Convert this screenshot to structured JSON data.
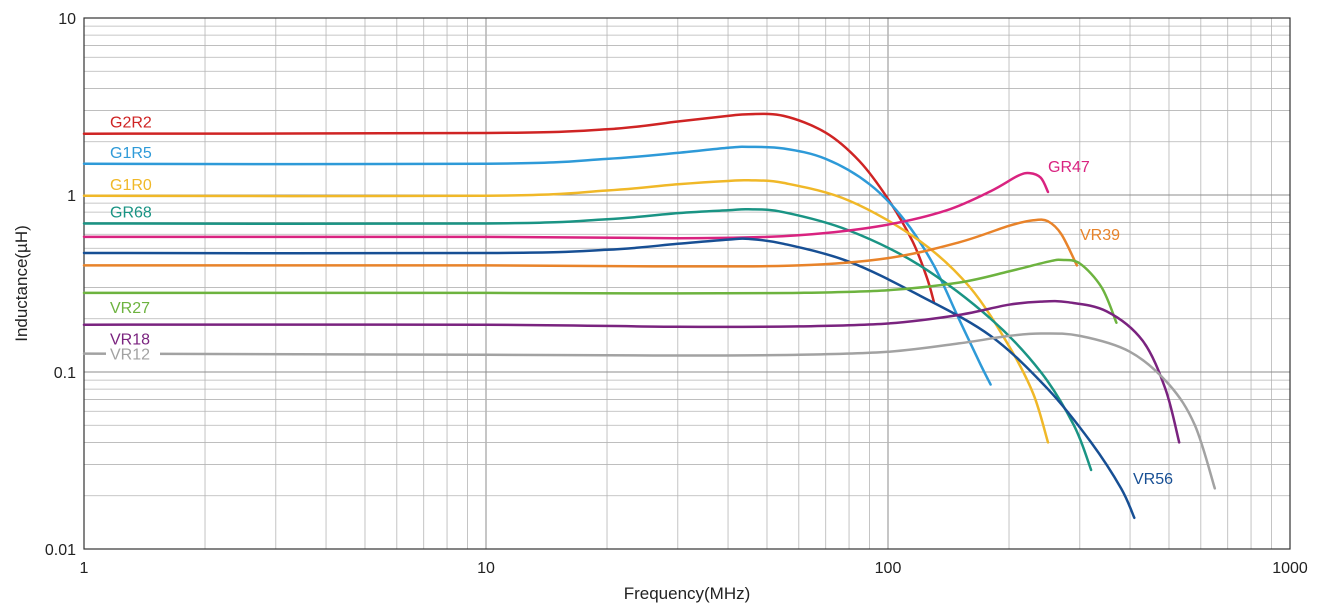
{
  "chart_data": {
    "type": "line",
    "title": "",
    "xlabel": "Frequency(MHz)",
    "ylabel": "Inductance(µH)",
    "x_scale": "log",
    "y_scale": "log",
    "xlim": [
      1,
      1000
    ],
    "ylim": [
      0.01,
      10
    ],
    "x_ticks": [
      1,
      10,
      100,
      1000
    ],
    "x_tick_labels": [
      "1",
      "10",
      "100",
      "1000"
    ],
    "y_ticks": [
      0.01,
      0.1,
      1,
      10
    ],
    "y_tick_labels": [
      "0.01",
      "0.1",
      "1",
      "10"
    ],
    "grid": true,
    "legend": "inline labels",
    "series": [
      {
        "name": "G2R2",
        "color": "#cf2424",
        "points": [
          [
            1,
            2.22
          ],
          [
            10,
            2.24
          ],
          [
            20,
            2.35
          ],
          [
            30,
            2.6
          ],
          [
            40,
            2.8
          ],
          [
            45,
            2.86
          ],
          [
            55,
            2.8
          ],
          [
            70,
            2.25
          ],
          [
            85,
            1.55
          ],
          [
            100,
            0.95
          ],
          [
            115,
            0.55
          ],
          [
            125,
            0.34
          ],
          [
            130,
            0.25
          ]
        ]
      },
      {
        "name": "G1R5",
        "color": "#2e9ad8",
        "points": [
          [
            1,
            1.5
          ],
          [
            10,
            1.5
          ],
          [
            20,
            1.6
          ],
          [
            30,
            1.73
          ],
          [
            40,
            1.85
          ],
          [
            45,
            1.87
          ],
          [
            55,
            1.83
          ],
          [
            70,
            1.6
          ],
          [
            90,
            1.15
          ],
          [
            110,
            0.72
          ],
          [
            130,
            0.4
          ],
          [
            150,
            0.2
          ],
          [
            170,
            0.11
          ],
          [
            180,
            0.085
          ]
        ]
      },
      {
        "name": "G1R0",
        "color": "#f0b828",
        "points": [
          [
            1,
            0.99
          ],
          [
            10,
            0.99
          ],
          [
            20,
            1.06
          ],
          [
            30,
            1.15
          ],
          [
            40,
            1.2
          ],
          [
            45,
            1.21
          ],
          [
            55,
            1.17
          ],
          [
            80,
            0.93
          ],
          [
            120,
            0.55
          ],
          [
            160,
            0.3
          ],
          [
            200,
            0.14
          ],
          [
            230,
            0.075
          ],
          [
            250,
            0.04
          ]
        ]
      },
      {
        "name": "GR68",
        "color": "#1a9484",
        "points": [
          [
            1,
            0.69
          ],
          [
            10,
            0.69
          ],
          [
            20,
            0.73
          ],
          [
            30,
            0.79
          ],
          [
            40,
            0.82
          ],
          [
            45,
            0.83
          ],
          [
            55,
            0.8
          ],
          [
            80,
            0.63
          ],
          [
            120,
            0.4
          ],
          [
            180,
            0.2
          ],
          [
            240,
            0.1
          ],
          [
            290,
            0.05
          ],
          [
            320,
            0.028
          ]
        ]
      },
      {
        "name": "GR47",
        "color": "#d92380",
        "points": [
          [
            1,
            0.58
          ],
          [
            10,
            0.58
          ],
          [
            30,
            0.57
          ],
          [
            50,
            0.58
          ],
          [
            70,
            0.61
          ],
          [
            100,
            0.68
          ],
          [
            140,
            0.82
          ],
          [
            180,
            1.05
          ],
          [
            210,
            1.28
          ],
          [
            225,
            1.33
          ],
          [
            240,
            1.25
          ],
          [
            250,
            1.04
          ]
        ]
      },
      {
        "name": "VR56",
        "color": "#174f94",
        "points": [
          [
            1,
            0.47
          ],
          [
            10,
            0.47
          ],
          [
            20,
            0.49
          ],
          [
            30,
            0.53
          ],
          [
            40,
            0.56
          ],
          [
            45,
            0.565
          ],
          [
            55,
            0.53
          ],
          [
            80,
            0.42
          ],
          [
            120,
            0.27
          ],
          [
            180,
            0.16
          ],
          [
            250,
            0.08
          ],
          [
            320,
            0.04
          ],
          [
            380,
            0.022
          ],
          [
            410,
            0.015
          ]
        ]
      },
      {
        "name": "VR39",
        "color": "#e8832a",
        "points": [
          [
            1,
            0.4
          ],
          [
            10,
            0.4
          ],
          [
            30,
            0.395
          ],
          [
            60,
            0.4
          ],
          [
            100,
            0.44
          ],
          [
            150,
            0.54
          ],
          [
            200,
            0.67
          ],
          [
            230,
            0.72
          ],
          [
            250,
            0.71
          ],
          [
            270,
            0.6
          ],
          [
            295,
            0.4
          ]
        ]
      },
      {
        "name": "VR27",
        "color": "#6db33f",
        "points": [
          [
            1,
            0.28
          ],
          [
            10,
            0.28
          ],
          [
            30,
            0.278
          ],
          [
            60,
            0.28
          ],
          [
            100,
            0.29
          ],
          [
            150,
            0.32
          ],
          [
            200,
            0.37
          ],
          [
            250,
            0.42
          ],
          [
            270,
            0.43
          ],
          [
            300,
            0.41
          ],
          [
            340,
            0.3
          ],
          [
            370,
            0.19
          ]
        ]
      },
      {
        "name": "VR18",
        "color": "#7a237f",
        "points": [
          [
            1,
            0.185
          ],
          [
            10,
            0.185
          ],
          [
            30,
            0.18
          ],
          [
            60,
            0.181
          ],
          [
            100,
            0.188
          ],
          [
            150,
            0.21
          ],
          [
            200,
            0.24
          ],
          [
            240,
            0.25
          ],
          [
            280,
            0.248
          ],
          [
            350,
            0.22
          ],
          [
            430,
            0.15
          ],
          [
            490,
            0.08
          ],
          [
            530,
            0.04
          ]
        ]
      },
      {
        "name": "VR12",
        "color": "#a2a2a2",
        "points": [
          [
            1,
            0.127
          ],
          [
            10,
            0.125
          ],
          [
            30,
            0.124
          ],
          [
            60,
            0.125
          ],
          [
            100,
            0.13
          ],
          [
            150,
            0.145
          ],
          [
            200,
            0.16
          ],
          [
            240,
            0.165
          ],
          [
            300,
            0.16
          ],
          [
            400,
            0.13
          ],
          [
            500,
            0.085
          ],
          [
            580,
            0.05
          ],
          [
            650,
            0.022
          ]
        ]
      }
    ]
  }
}
